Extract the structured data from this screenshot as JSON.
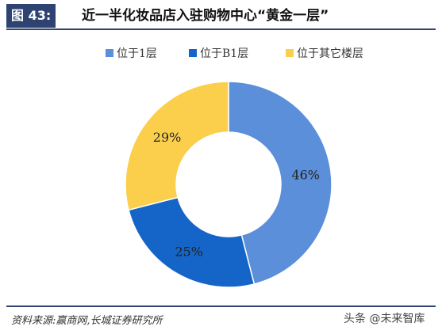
{
  "header": {
    "figure_label": "图 43:",
    "title": "近一半化妆品店入驻购物中心“黄金一层”"
  },
  "chart_data": {
    "type": "pie",
    "donut": true,
    "categories": [
      "位于1层",
      "位于B1层",
      "位于其它楼层"
    ],
    "values": [
      46,
      25,
      29
    ],
    "value_labels": [
      "46%",
      "25%",
      "29%"
    ],
    "colors": [
      "#5b8fd9",
      "#1565c8",
      "#fbcf4c"
    ],
    "legend_position": "top"
  },
  "footer": {
    "source": "资料来源:赢商网,长城证券研究所",
    "watermark": "头条 @未来智库"
  }
}
